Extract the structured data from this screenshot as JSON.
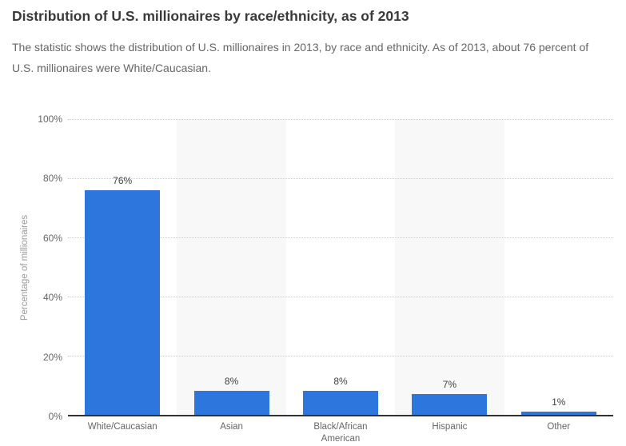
{
  "header": {
    "title": "Distribution of U.S. millionaires by race/ethnicity, as of 2013",
    "subtitle": "The statistic shows the distribution of U.S. millionaires in 2013, by race and ethnicity. As of 2013, about 76 percent of U.S. millionaires were White/Caucasian."
  },
  "chart_data": {
    "type": "bar",
    "title": "Distribution of U.S. millionaires by race/ethnicity, as of 2013",
    "categories": [
      "White/Caucasian",
      "Asian",
      "Black/African American",
      "Hispanic",
      "Other"
    ],
    "values": [
      76,
      8,
      8,
      7,
      1
    ],
    "value_labels": [
      "76%",
      "8%",
      "8%",
      "7%",
      "1%"
    ],
    "xlabel": "",
    "ylabel": "Percentage of millionaires",
    "ylim": [
      0,
      100
    ],
    "ytick_step": 20,
    "yticks": [
      "0%",
      "20%",
      "40%",
      "60%",
      "80%",
      "100%"
    ],
    "grid": "horizontal-dotted",
    "legend_position": "none",
    "band_columns": [
      1,
      3
    ],
    "colors": {
      "bar": "#2d76dd",
      "plot_band": "#f8f8f8",
      "gridline": "#cccccc",
      "axis_line": "#333333",
      "title_text": "#3a3a3a",
      "subtitle_text": "#666666"
    }
  }
}
